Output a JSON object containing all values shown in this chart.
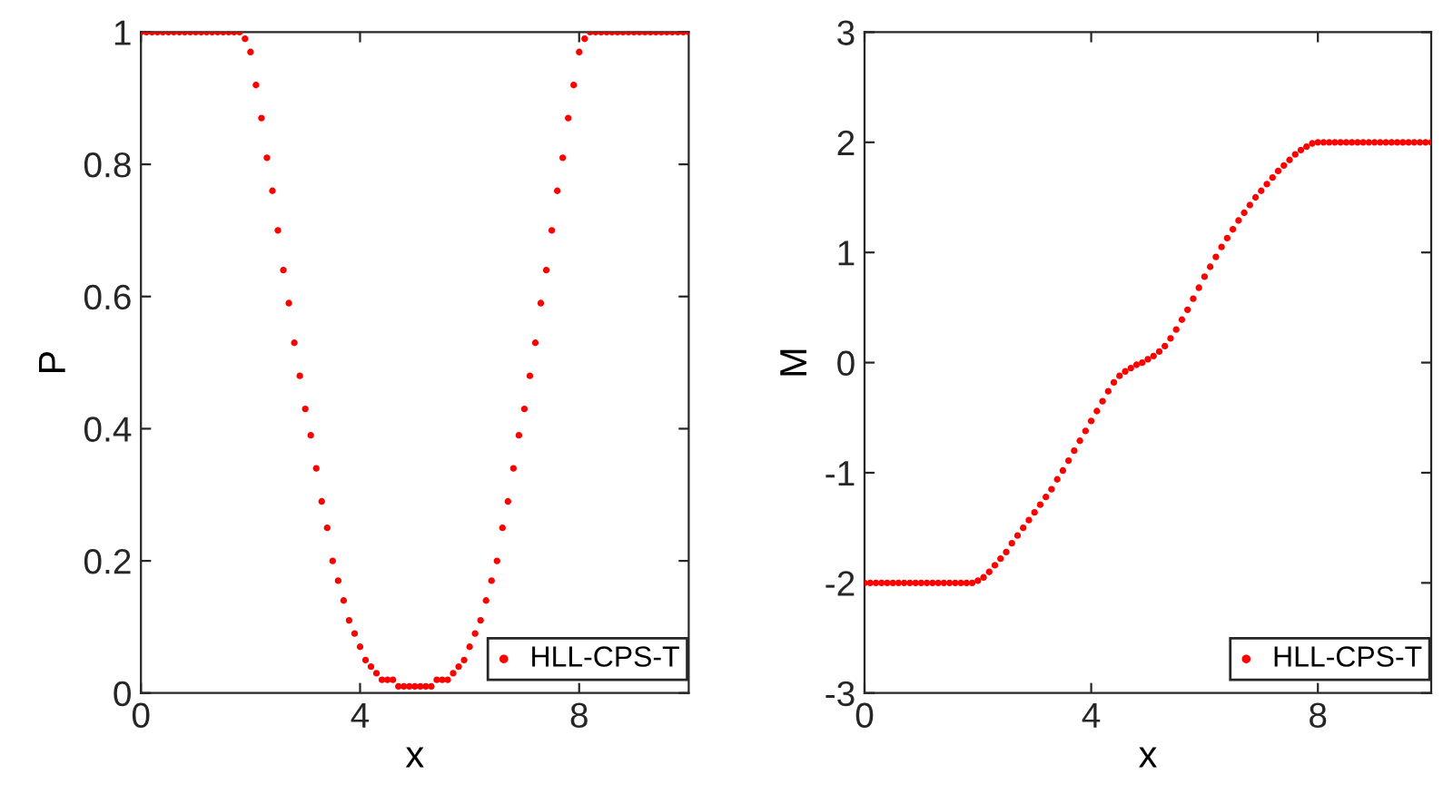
{
  "chart_data": [
    {
      "type": "scatter",
      "xlabel": "x",
      "ylabel": "P",
      "xlim": [
        0,
        10
      ],
      "xticks": [
        0,
        4,
        8
      ],
      "ylim": [
        0,
        1
      ],
      "yticks": [
        0,
        0.2,
        0.4,
        0.6,
        0.8,
        1
      ],
      "grid": false,
      "legend": "bottom right",
      "marker": "circle",
      "x": [
        0,
        0.1,
        0.2,
        0.3,
        0.4,
        0.5,
        0.6,
        0.7,
        0.8,
        0.9,
        1,
        1.1,
        1.2,
        1.3,
        1.4,
        1.5,
        1.6,
        1.7,
        1.8,
        1.9,
        2,
        2.1,
        2.2,
        2.3,
        2.4,
        2.5,
        2.6,
        2.7,
        2.8,
        2.9,
        3,
        3.1,
        3.2,
        3.3,
        3.4,
        3.5,
        3.6,
        3.7,
        3.8,
        3.9,
        4,
        4.1,
        4.2,
        4.3,
        4.4,
        4.5,
        4.6,
        4.7,
        4.8,
        4.9,
        5,
        5.1,
        5.2,
        5.3,
        5.4,
        5.5,
        5.6,
        5.7,
        5.8,
        5.9,
        6,
        6.1,
        6.2,
        6.3,
        6.4,
        6.5,
        6.6,
        6.7,
        6.8,
        6.9,
        7,
        7.1,
        7.2,
        7.3,
        7.4,
        7.5,
        7.6,
        7.7,
        7.8,
        7.9,
        8,
        8.1,
        8.2,
        8.3,
        8.4,
        8.5,
        8.6,
        8.7,
        8.8,
        8.9,
        9,
        9.1,
        9.2,
        9.3,
        9.4,
        9.5,
        9.6,
        9.7,
        9.8,
        9.9,
        10
      ],
      "series": [
        {
          "name": "HLL-CPS-T",
          "color": "#ff0000",
          "values": [
            1,
            1,
            1,
            1,
            1,
            1,
            1,
            1,
            1,
            1,
            1,
            1,
            1,
            1,
            1,
            1,
            1,
            1,
            1,
            0.99,
            0.97,
            0.92,
            0.87,
            0.81,
            0.76,
            0.7,
            0.64,
            0.59,
            0.53,
            0.48,
            0.43,
            0.39,
            0.34,
            0.29,
            0.25,
            0.2,
            0.17,
            0.14,
            0.11,
            0.09,
            0.07,
            0.05,
            0.04,
            0.03,
            0.02,
            0.02,
            0.02,
            0.01,
            0.01,
            0.01,
            0.01,
            0.01,
            0.01,
            0.01,
            0.02,
            0.02,
            0.02,
            0.03,
            0.04,
            0.05,
            0.07,
            0.09,
            0.11,
            0.14,
            0.17,
            0.2,
            0.25,
            0.29,
            0.34,
            0.39,
            0.43,
            0.48,
            0.53,
            0.59,
            0.64,
            0.7,
            0.76,
            0.81,
            0.87,
            0.92,
            0.97,
            0.99,
            1,
            1,
            1,
            1,
            1,
            1,
            1,
            1,
            1,
            1,
            1,
            1,
            1,
            1,
            1,
            1,
            1,
            1,
            1
          ]
        }
      ]
    },
    {
      "type": "scatter",
      "xlabel": "x",
      "ylabel": "M",
      "xlim": [
        0,
        10
      ],
      "xticks": [
        0,
        4,
        8
      ],
      "ylim": [
        -3,
        3
      ],
      "yticks": [
        -3,
        -2,
        -1,
        0,
        1,
        2,
        3
      ],
      "grid": false,
      "legend": "bottom right",
      "marker": "circle",
      "x": [
        0,
        0.1,
        0.2,
        0.3,
        0.4,
        0.5,
        0.6,
        0.7,
        0.8,
        0.9,
        1,
        1.1,
        1.2,
        1.3,
        1.4,
        1.5,
        1.6,
        1.7,
        1.8,
        1.9,
        2,
        2.1,
        2.2,
        2.3,
        2.4,
        2.5,
        2.6,
        2.7,
        2.8,
        2.9,
        3,
        3.1,
        3.2,
        3.3,
        3.4,
        3.5,
        3.6,
        3.7,
        3.8,
        3.9,
        4,
        4.1,
        4.2,
        4.3,
        4.4,
        4.5,
        4.6,
        4.7,
        4.8,
        4.9,
        5,
        5.1,
        5.2,
        5.3,
        5.4,
        5.5,
        5.6,
        5.7,
        5.8,
        5.9,
        6,
        6.1,
        6.2,
        6.3,
        6.4,
        6.5,
        6.6,
        6.7,
        6.8,
        6.9,
        7,
        7.1,
        7.2,
        7.3,
        7.4,
        7.5,
        7.6,
        7.7,
        7.8,
        7.9,
        8,
        8.1,
        8.2,
        8.3,
        8.4,
        8.5,
        8.6,
        8.7,
        8.8,
        8.9,
        9,
        9.1,
        9.2,
        9.3,
        9.4,
        9.5,
        9.6,
        9.7,
        9.8,
        9.9,
        10
      ],
      "series": [
        {
          "name": "HLL-CPS-T",
          "color": "#ff0000",
          "values": [
            -2,
            -2,
            -2,
            -2,
            -2,
            -2,
            -2,
            -2,
            -2,
            -2,
            -2,
            -2,
            -2,
            -2,
            -2,
            -2,
            -2,
            -2,
            -2,
            -2,
            -1.98,
            -1.95,
            -1.9,
            -1.84,
            -1.78,
            -1.72,
            -1.64,
            -1.57,
            -1.5,
            -1.43,
            -1.36,
            -1.29,
            -1.22,
            -1.15,
            -1.06,
            -0.98,
            -0.89,
            -0.8,
            -0.71,
            -0.62,
            -0.53,
            -0.44,
            -0.35,
            -0.26,
            -0.18,
            -0.12,
            -0.08,
            -0.05,
            -0.02,
            0,
            0.03,
            0.06,
            0.1,
            0.15,
            0.22,
            0.3,
            0.39,
            0.48,
            0.58,
            0.68,
            0.78,
            0.87,
            0.96,
            1.05,
            1.13,
            1.21,
            1.29,
            1.36,
            1.43,
            1.5,
            1.56,
            1.62,
            1.68,
            1.74,
            1.79,
            1.84,
            1.89,
            1.93,
            1.96,
            1.99,
            2,
            2,
            2,
            2,
            2,
            2,
            2,
            2,
            2,
            2,
            2,
            2,
            2,
            2,
            2,
            2,
            2,
            2,
            2,
            2,
            2
          ]
        }
      ]
    }
  ]
}
